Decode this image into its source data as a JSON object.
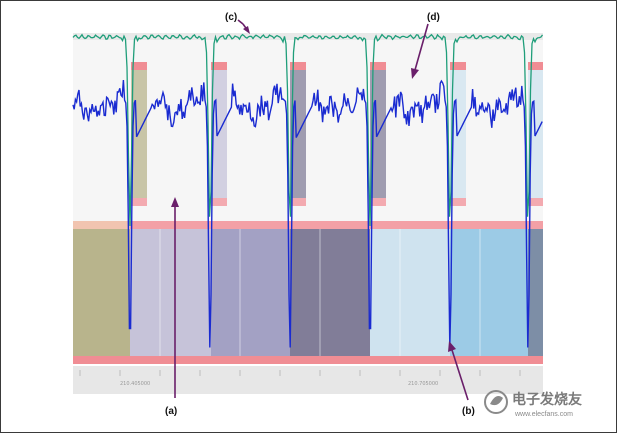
{
  "chart_data": {
    "type": "line",
    "title": "",
    "xlabel": "",
    "ylabel": "",
    "annotations": [
      {
        "id": "a",
        "text": "(a)"
      },
      {
        "id": "b",
        "text": "(b)"
      },
      {
        "id": "c",
        "text": "(c)"
      },
      {
        "id": "d",
        "text": "(d)"
      }
    ],
    "tick_labels": [
      "210.405000",
      "210.705000"
    ],
    "series": [
      {
        "name": "green-trace",
        "color": "#1f9e7a"
      },
      {
        "name": "blue-trace",
        "color": "#1a2bd1"
      }
    ],
    "band_colors": [
      "#b8b48c",
      "#c6c3d9",
      "#a3a1c4",
      "#817d98",
      "#cfe3ef",
      "#9ccbe6",
      "#7d8ea6"
    ]
  },
  "watermark": {
    "title": "电子发烧友",
    "url": "www.elecfans.com"
  }
}
